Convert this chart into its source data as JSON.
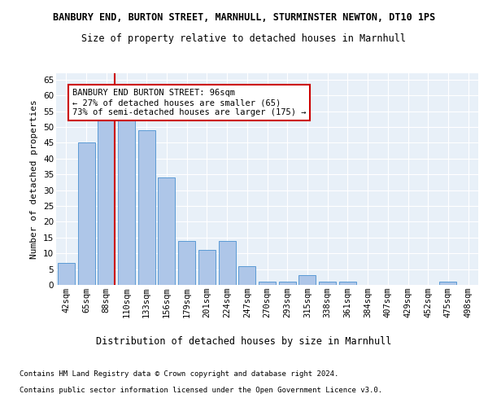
{
  "title": "BANBURY END, BURTON STREET, MARNHULL, STURMINSTER NEWTON, DT10 1PS",
  "subtitle": "Size of property relative to detached houses in Marnhull",
  "xlabel": "Distribution of detached houses by size in Marnhull",
  "ylabel": "Number of detached properties",
  "categories": [
    "42sqm",
    "65sqm",
    "88sqm",
    "110sqm",
    "133sqm",
    "156sqm",
    "179sqm",
    "201sqm",
    "224sqm",
    "247sqm",
    "270sqm",
    "293sqm",
    "315sqm",
    "338sqm",
    "361sqm",
    "384sqm",
    "407sqm",
    "429sqm",
    "452sqm",
    "475sqm",
    "498sqm"
  ],
  "values": [
    7,
    45,
    53,
    53,
    49,
    34,
    14,
    11,
    14,
    6,
    1,
    1,
    3,
    1,
    1,
    0,
    0,
    0,
    0,
    1,
    0
  ],
  "bar_color": "#aec6e8",
  "bar_edge_color": "#5b9bd5",
  "vline_x_index": 2,
  "vline_color": "#cc0000",
  "annotation_text": "BANBURY END BURTON STREET: 96sqm\n← 27% of detached houses are smaller (65)\n73% of semi-detached houses are larger (175) →",
  "annotation_box_color": "#ffffff",
  "annotation_box_edge": "#cc0000",
  "ylim": [
    0,
    67
  ],
  "yticks": [
    0,
    5,
    10,
    15,
    20,
    25,
    30,
    35,
    40,
    45,
    50,
    55,
    60,
    65
  ],
  "footnote1": "Contains HM Land Registry data © Crown copyright and database right 2024.",
  "footnote2": "Contains public sector information licensed under the Open Government Licence v3.0.",
  "bg_color": "#e8f0f8",
  "fig_bg": "#ffffff",
  "title_fontsize": 8.5,
  "subtitle_fontsize": 8.5,
  "xlabel_fontsize": 8.5,
  "ylabel_fontsize": 8.0,
  "footnote_fontsize": 6.5,
  "tick_fontsize": 7.5,
  "annot_fontsize": 7.5
}
